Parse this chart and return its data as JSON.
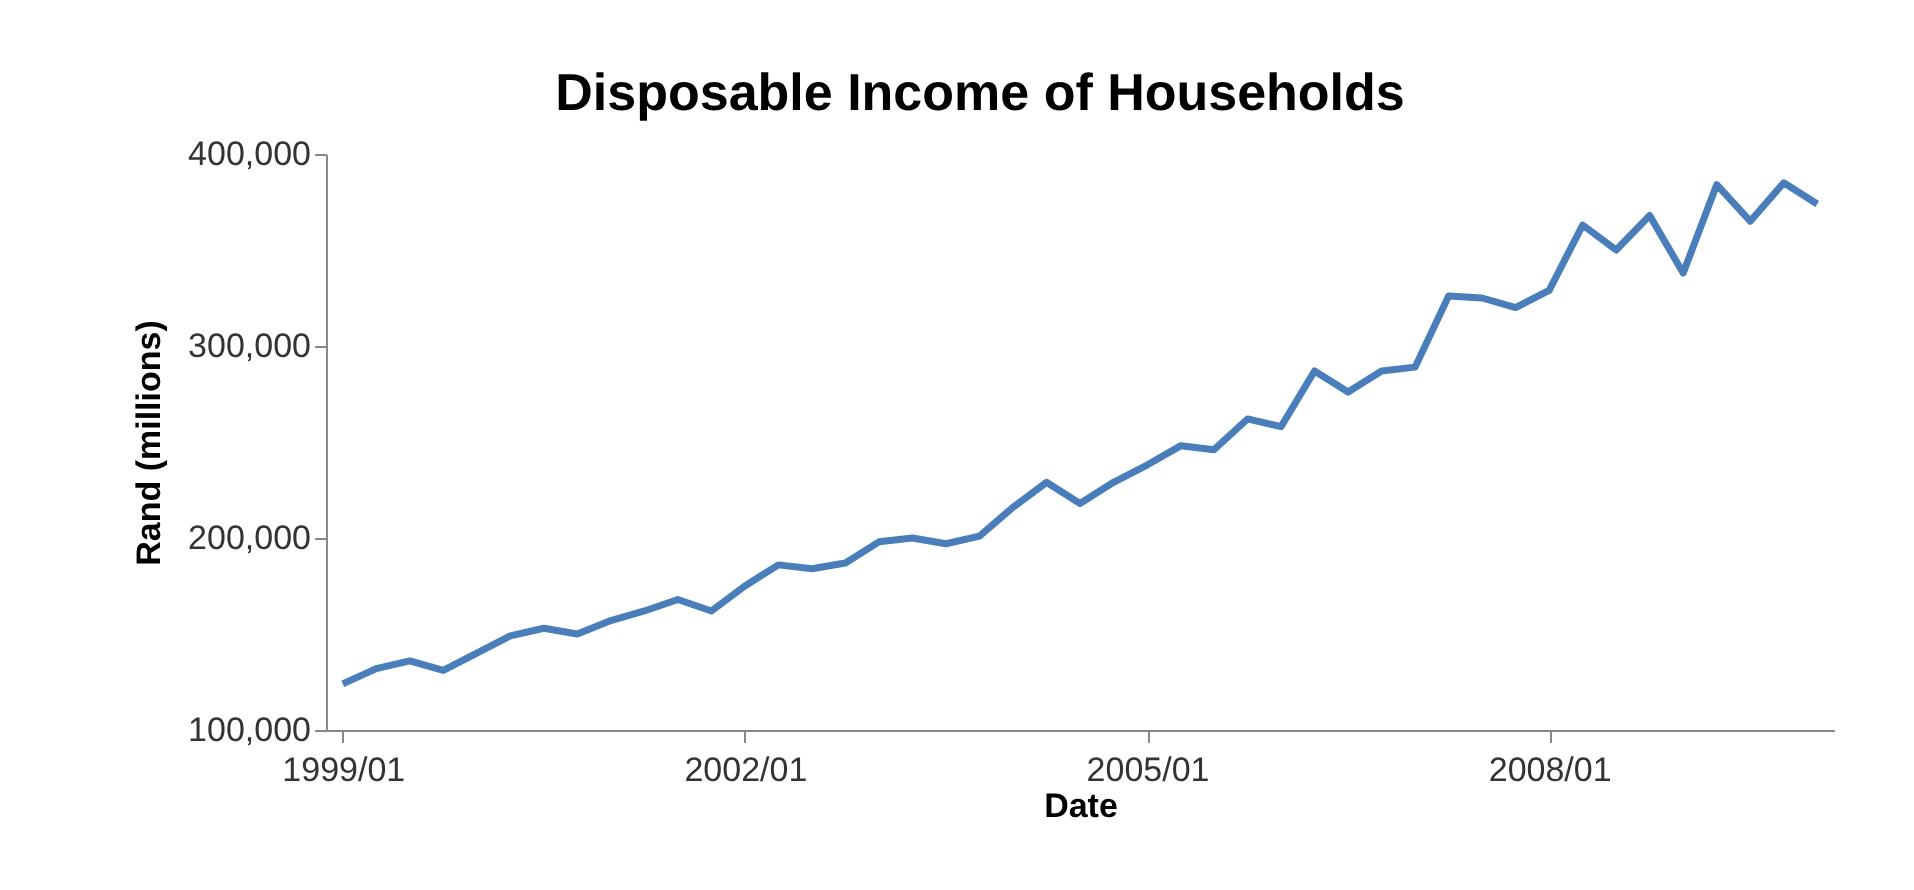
{
  "chart_data": {
    "type": "line",
    "title": "Disposable Income of Households",
    "xlabel": "Date",
    "ylabel": "Rand (millions)",
    "categories": [
      "1999/01",
      null,
      null,
      null,
      null,
      null,
      null,
      null,
      null,
      null,
      null,
      null,
      "2002/01",
      null,
      null,
      null,
      null,
      null,
      null,
      null,
      null,
      null,
      null,
      null,
      "2005/01",
      null,
      null,
      null,
      null,
      null,
      null,
      null,
      null,
      null,
      null,
      null,
      "2008/01",
      null,
      null,
      null,
      null,
      null,
      null,
      null,
      null
    ],
    "series": [
      {
        "color": "#4a7ebb",
        "values": [
          124000,
          132000,
          136000,
          131000,
          140000,
          149000,
          153000,
          150000,
          157000,
          162000,
          168000,
          162000,
          175000,
          186000,
          184000,
          187000,
          198000,
          200000,
          197000,
          201000,
          216000,
          229000,
          218000,
          229000,
          238000,
          248000,
          246000,
          262000,
          258000,
          287000,
          276000,
          287000,
          289000,
          326000,
          325000,
          320000,
          329000,
          363000,
          350000,
          368000,
          338000,
          384000,
          365000,
          385000,
          374000
        ]
      }
    ],
    "ylim": [
      100000,
      400000
    ],
    "yticks": [
      {
        "value": 100000,
        "label": "100,000"
      },
      {
        "value": 200000,
        "label": "200,000"
      },
      {
        "value": 300000,
        "label": "300,000"
      },
      {
        "value": 400000,
        "label": "400,000"
      }
    ],
    "grid": false
  }
}
